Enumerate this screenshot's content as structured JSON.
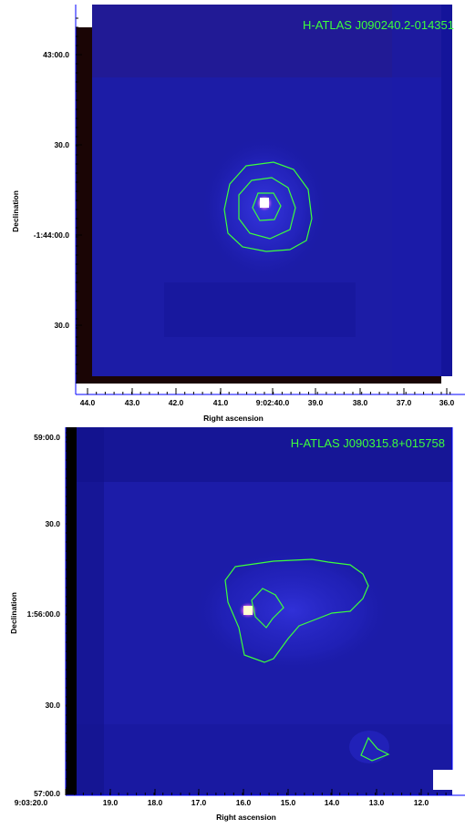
{
  "panels": [
    {
      "title": "H-ATLAS J090240.2-014351",
      "xlabel": "Right ascension",
      "ylabel": "Declination",
      "x_ticks": [
        "44.0",
        "43.0",
        "42.0",
        "41.0",
        "9:02:40.0",
        "39.0",
        "38.0",
        "37.0",
        "36.0"
      ],
      "y_ticks": [
        "43:00.0",
        "30.0",
        "-1:44:00.0",
        "30.0"
      ]
    },
    {
      "title": "H-ATLAS J090315.8+015758",
      "xlabel": "Right ascension",
      "ylabel": "Declination",
      "x_ticks": [
        "9:03:20.0",
        "19.0",
        "18.0",
        "17.0",
        "16.0",
        "15.0",
        "14.0",
        "13.0",
        "12.0"
      ],
      "y_ticks": [
        "59:00.0",
        "30.0",
        "1:56:00.0",
        "30.0",
        "57:00.0"
      ]
    }
  ],
  "colors": {
    "background": "#1a1aa8",
    "contour": "#3cff3c",
    "frame": "#0000ff",
    "source": "#ffe0ff"
  }
}
